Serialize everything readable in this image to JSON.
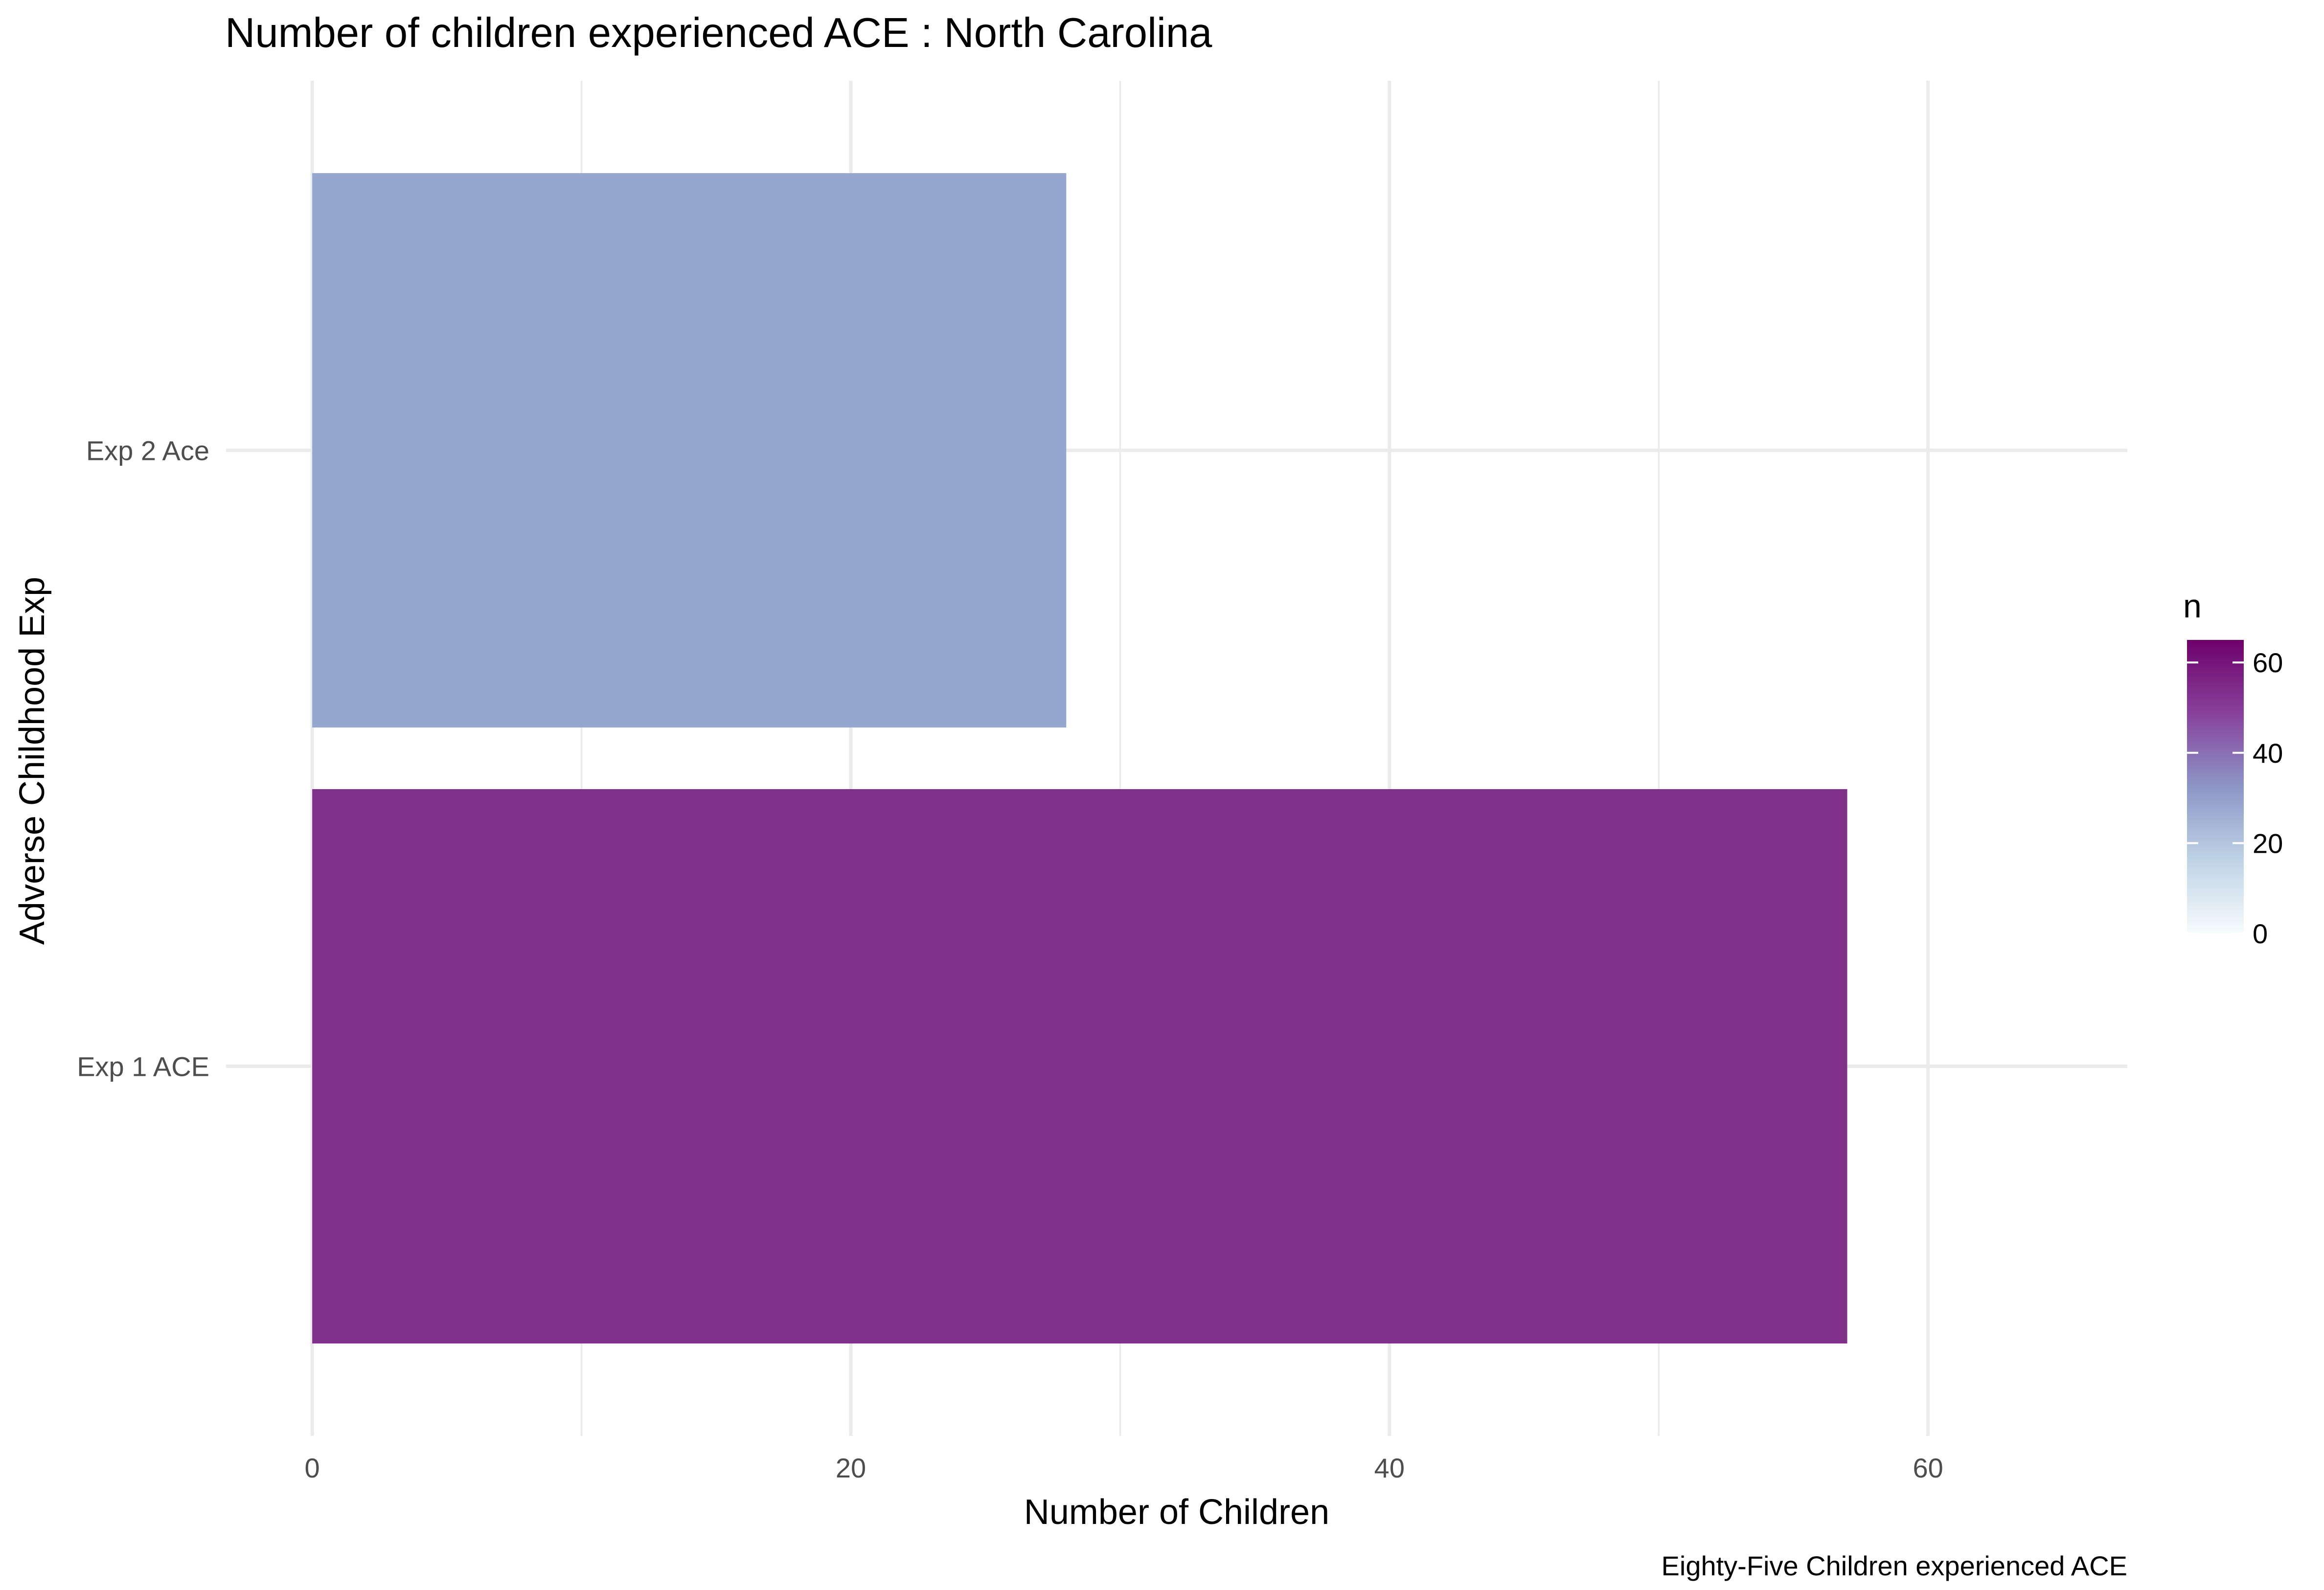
{
  "chart_data": {
    "type": "bar",
    "orientation": "horizontal",
    "title": "Number of children experienced ACE : North Carolina",
    "xlabel": "Number of Children",
    "ylabel": "Adverse Childhood Exp",
    "caption": "Eighty-Five Children experienced ACE",
    "categories": [
      "Exp 1 ACE",
      "Exp 2 Ace"
    ],
    "values": [
      57,
      28
    ],
    "xlim": [
      -3.2,
      67.4
    ],
    "xticks": [
      0,
      20,
      40,
      60
    ],
    "grid": true,
    "legend": {
      "title": "n",
      "type": "colorbar",
      "placement": "right",
      "range": [
        0,
        65
      ],
      "ticks": [
        0,
        20,
        40,
        60
      ],
      "colors": [
        "#f7fcfd",
        "#bfd3e6",
        "#8c96c6",
        "#88419d",
        "#6e016b"
      ]
    },
    "bar_colors": [
      "#7f3088",
      "#95a7cf"
    ]
  }
}
